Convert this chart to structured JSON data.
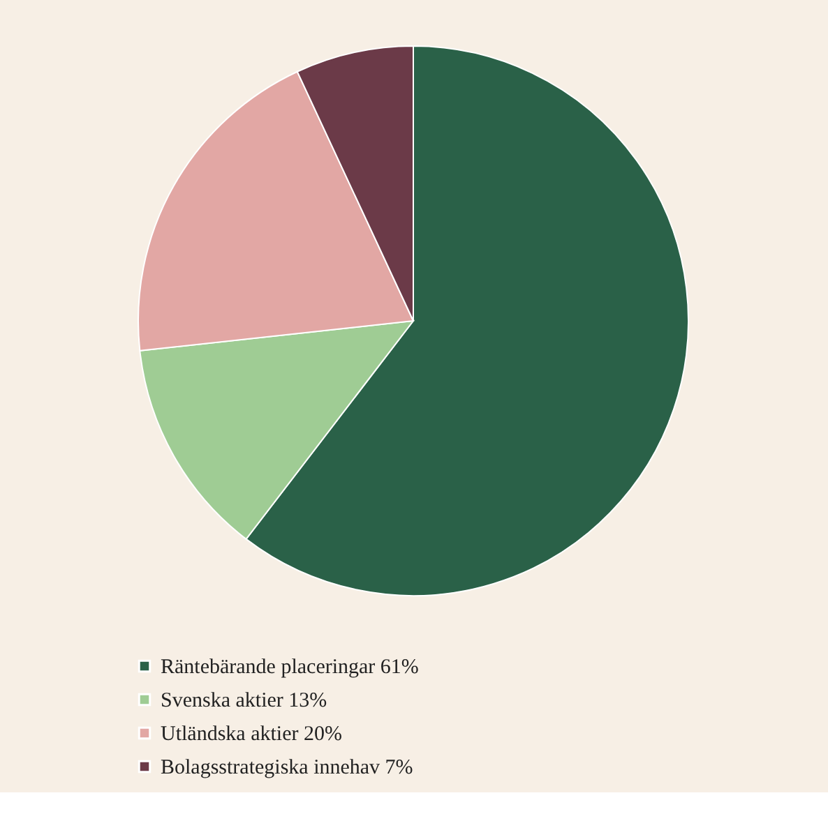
{
  "chart_data": {
    "type": "pie",
    "categories": [
      "Räntebärande placeringar",
      "Svenska aktier",
      "Utländska aktier",
      "Bolagsstrategiska innehav"
    ],
    "values": [
      61,
      13,
      20,
      7
    ],
    "value_labels": [
      "61%",
      "13%",
      "20%",
      "7%"
    ],
    "colors": [
      "#2a6148",
      "#9fcc94",
      "#e2a7a4",
      "#6b3a48"
    ],
    "legend": "bottom"
  }
}
